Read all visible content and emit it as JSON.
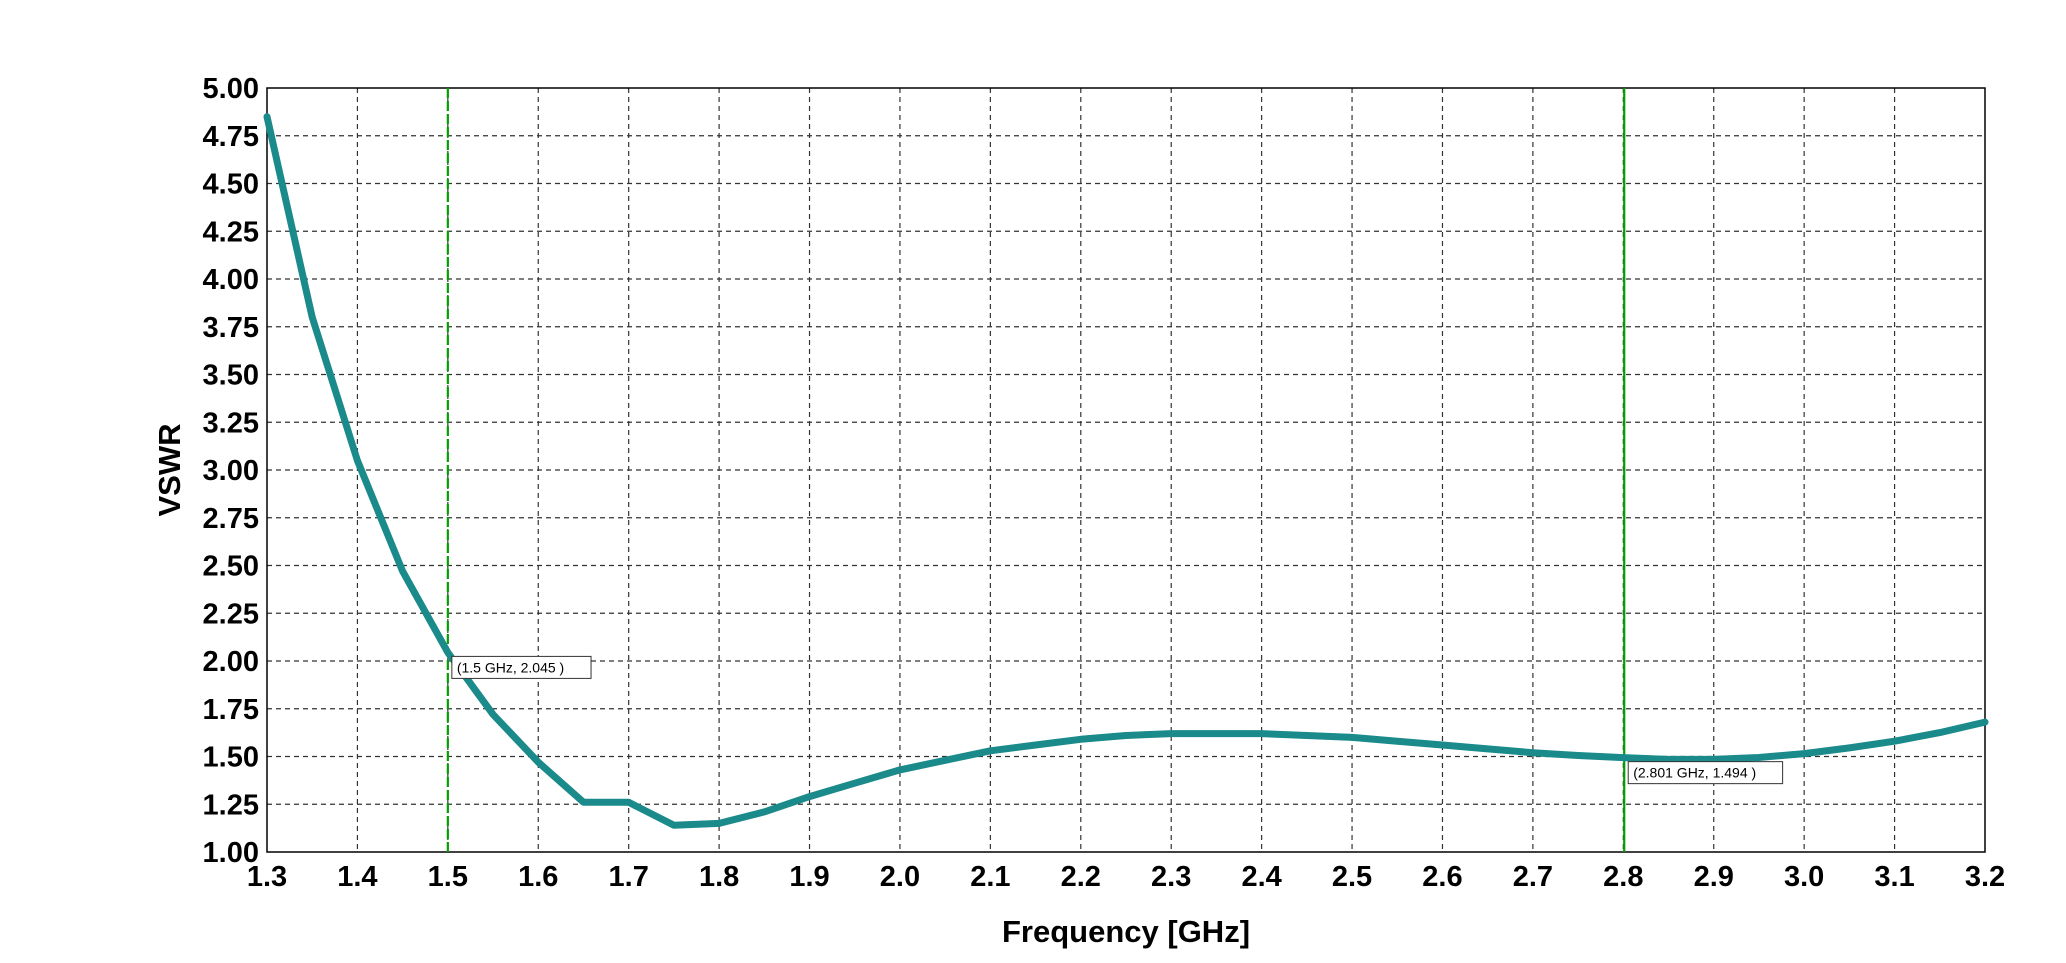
{
  "chart_data": {
    "type": "line",
    "xlabel": "Frequency [GHz]",
    "ylabel": "VSWR",
    "xlim": [
      1.3,
      3.2
    ],
    "ylim": [
      1.0,
      5.0
    ],
    "x_ticks": [
      "1.3",
      "1.4",
      "1.5",
      "1.6",
      "1.7",
      "1.8",
      "1.9",
      "2.0",
      "2.1",
      "2.2",
      "2.3",
      "2.4",
      "2.5",
      "2.6",
      "2.7",
      "2.8",
      "2.9",
      "3.0",
      "3.1",
      "3.2"
    ],
    "y_ticks": [
      "1.00",
      "1.25",
      "1.50",
      "1.75",
      "2.00",
      "2.25",
      "2.50",
      "2.75",
      "3.00",
      "3.25",
      "3.50",
      "3.75",
      "4.00",
      "4.25",
      "4.50",
      "4.75",
      "5.00"
    ],
    "grid": true,
    "series": [
      {
        "color": "#1a8a8a",
        "x": [
          1.3,
          1.35,
          1.4,
          1.45,
          1.5,
          1.55,
          1.6,
          1.65,
          1.7,
          1.75,
          1.8,
          1.85,
          1.9,
          1.95,
          2.0,
          2.05,
          2.1,
          2.15,
          2.2,
          2.25,
          2.3,
          2.35,
          2.4,
          2.45,
          2.5,
          2.55,
          2.6,
          2.65,
          2.7,
          2.75,
          2.8,
          2.85,
          2.9,
          2.95,
          3.0,
          3.05,
          3.1,
          3.15,
          3.2
        ],
        "y": [
          4.85,
          3.8,
          3.05,
          2.47,
          2.045,
          1.72,
          1.47,
          1.26,
          1.26,
          1.14,
          1.15,
          1.21,
          1.29,
          1.36,
          1.43,
          1.48,
          1.53,
          1.56,
          1.59,
          1.61,
          1.62,
          1.62,
          1.62,
          1.61,
          1.6,
          1.58,
          1.56,
          1.54,
          1.52,
          1.505,
          1.494,
          1.485,
          1.485,
          1.495,
          1.515,
          1.545,
          1.58,
          1.625,
          1.68
        ]
      }
    ],
    "markers": [
      {
        "x": 1.5,
        "y": 2.045,
        "label": "(1.5 GHz, 2.045 )",
        "line_color": "#00a000",
        "dashed": true
      },
      {
        "x": 2.801,
        "y": 1.494,
        "label": "(2.801 GHz, 1.494 )",
        "line_color": "#00a000",
        "dashed": false
      }
    ]
  }
}
